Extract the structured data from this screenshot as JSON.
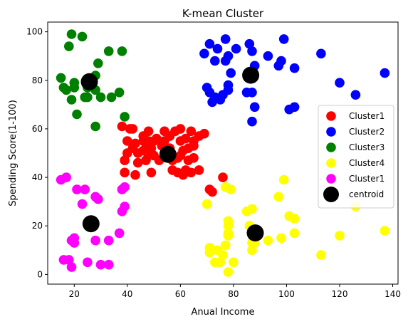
{
  "chart_data": {
    "type": "scatter",
    "title": "K-mean Cluster",
    "xlabel": "Anual Income",
    "ylabel": "Spending Score(1-100)",
    "xlim": [
      10,
      142
    ],
    "ylim": [
      -4,
      104
    ],
    "xticks": [
      20,
      40,
      60,
      80,
      100,
      120,
      140
    ],
    "yticks": [
      0,
      20,
      40,
      60,
      80,
      100
    ],
    "grid": false,
    "legend_position": "center-right",
    "series": [
      {
        "name": "Cluster1",
        "color": "#ff0000",
        "points": [
          [
            38,
            61
          ],
          [
            39,
            47
          ],
          [
            39,
            42
          ],
          [
            40,
            55
          ],
          [
            40,
            50
          ],
          [
            41,
            60
          ],
          [
            42,
            52
          ],
          [
            42,
            60
          ],
          [
            43,
            54
          ],
          [
            43,
            41
          ],
          [
            44,
            50
          ],
          [
            44,
            46
          ],
          [
            46,
            51
          ],
          [
            46,
            55
          ],
          [
            46,
            57
          ],
          [
            47,
            52
          ],
          [
            47,
            47
          ],
          [
            48,
            49
          ],
          [
            48,
            55
          ],
          [
            48,
            59
          ],
          [
            49,
            42
          ],
          [
            49,
            52
          ],
          [
            50,
            55
          ],
          [
            50,
            49
          ],
          [
            51,
            56
          ],
          [
            52,
            47
          ],
          [
            53,
            53
          ],
          [
            54,
            59
          ],
          [
            54,
            55
          ],
          [
            55,
            50
          ],
          [
            56,
            52
          ],
          [
            56,
            57
          ],
          [
            57,
            47
          ],
          [
            57,
            43
          ],
          [
            58,
            59
          ],
          [
            59,
            42
          ],
          [
            59,
            48
          ],
          [
            60,
            60
          ],
          [
            60,
            55
          ],
          [
            60,
            49
          ],
          [
            61,
            41
          ],
          [
            61,
            51
          ],
          [
            62,
            56
          ],
          [
            62,
            43
          ],
          [
            63,
            52
          ],
          [
            63,
            47
          ],
          [
            64,
            59
          ],
          [
            64,
            42
          ],
          [
            65,
            53
          ],
          [
            65,
            48
          ],
          [
            65,
            55
          ],
          [
            67,
            57
          ],
          [
            67,
            43
          ],
          [
            69,
            58
          ],
          [
            71,
            35
          ],
          [
            72,
            34
          ],
          [
            76,
            40
          ]
        ]
      },
      {
        "name": "Cluster2",
        "color": "#0000ff",
        "points": [
          [
            69,
            91
          ],
          [
            70,
            77
          ],
          [
            71,
            95
          ],
          [
            71,
            75
          ],
          [
            72,
            71
          ],
          [
            73,
            88
          ],
          [
            73,
            73
          ],
          [
            74,
            93
          ],
          [
            75,
            72
          ],
          [
            76,
            74
          ],
          [
            77,
            97
          ],
          [
            77,
            88
          ],
          [
            78,
            90
          ],
          [
            78,
            78
          ],
          [
            78,
            76
          ],
          [
            79,
            83
          ],
          [
            81,
            93
          ],
          [
            85,
            75
          ],
          [
            86,
            95
          ],
          [
            87,
            92
          ],
          [
            87,
            63
          ],
          [
            87,
            75
          ],
          [
            88,
            86
          ],
          [
            88,
            69
          ],
          [
            93,
            90
          ],
          [
            97,
            86
          ],
          [
            98,
            88
          ],
          [
            99,
            97
          ],
          [
            101,
            68
          ],
          [
            103,
            85
          ],
          [
            103,
            69
          ],
          [
            113,
            91
          ],
          [
            120,
            79
          ],
          [
            126,
            74
          ],
          [
            137,
            83
          ]
        ]
      },
      {
        "name": "Cluster3",
        "color": "#008000",
        "points": [
          [
            15,
            81
          ],
          [
            16,
            77
          ],
          [
            17,
            76
          ],
          [
            18,
            94
          ],
          [
            19,
            72
          ],
          [
            19,
            99
          ],
          [
            20,
            77
          ],
          [
            20,
            79
          ],
          [
            21,
            66
          ],
          [
            23,
            98
          ],
          [
            24,
            73
          ],
          [
            25,
            73
          ],
          [
            25,
            77
          ],
          [
            28,
            76
          ],
          [
            28,
            82
          ],
          [
            29,
            87
          ],
          [
            30,
            73
          ],
          [
            33,
            92
          ],
          [
            34,
            73
          ],
          [
            37,
            75
          ],
          [
            38,
            92
          ],
          [
            39,
            65
          ],
          [
            28,
            61
          ]
        ]
      },
      {
        "name": "Cluster4",
        "color": "#ffff00",
        "points": [
          [
            70,
            29
          ],
          [
            71,
            11
          ],
          [
            71,
            9
          ],
          [
            72,
            10
          ],
          [
            73,
            5
          ],
          [
            74,
            10
          ],
          [
            75,
            5
          ],
          [
            76,
            8
          ],
          [
            77,
            12
          ],
          [
            77,
            36
          ],
          [
            78,
            22
          ],
          [
            78,
            17
          ],
          [
            78,
            20
          ],
          [
            78,
            16
          ],
          [
            78,
            1
          ],
          [
            79,
            35
          ],
          [
            80,
            5
          ],
          [
            85,
            26
          ],
          [
            86,
            20
          ],
          [
            87,
            27
          ],
          [
            87,
            13
          ],
          [
            87,
            10
          ],
          [
            88,
            15
          ],
          [
            88,
            13
          ],
          [
            93,
            14
          ],
          [
            97,
            32
          ],
          [
            98,
            15
          ],
          [
            99,
            39
          ],
          [
            101,
            24
          ],
          [
            103,
            17
          ],
          [
            103,
            23
          ],
          [
            113,
            8
          ],
          [
            120,
            16
          ],
          [
            126,
            28
          ],
          [
            137,
            18
          ]
        ]
      },
      {
        "name": "Cluster1",
        "color": "#ff00ff",
        "points": [
          [
            15,
            39
          ],
          [
            16,
            6
          ],
          [
            17,
            40
          ],
          [
            18,
            6
          ],
          [
            19,
            3
          ],
          [
            19,
            14
          ],
          [
            20,
            15
          ],
          [
            20,
            13
          ],
          [
            21,
            35
          ],
          [
            23,
            29
          ],
          [
            24,
            35
          ],
          [
            25,
            5
          ],
          [
            28,
            14
          ],
          [
            28,
            32
          ],
          [
            29,
            31
          ],
          [
            30,
            4
          ],
          [
            33,
            4
          ],
          [
            33,
            14
          ],
          [
            37,
            17
          ],
          [
            38,
            26
          ],
          [
            38,
            35
          ],
          [
            39,
            28
          ],
          [
            39,
            36
          ]
        ]
      },
      {
        "name": "centroid",
        "color": "#000000",
        "points": [
          [
            55.3,
            49.5
          ],
          [
            86.5,
            82.1
          ],
          [
            25.7,
            79.4
          ],
          [
            88.2,
            17.1
          ],
          [
            26.3,
            20.9
          ]
        ]
      }
    ]
  }
}
